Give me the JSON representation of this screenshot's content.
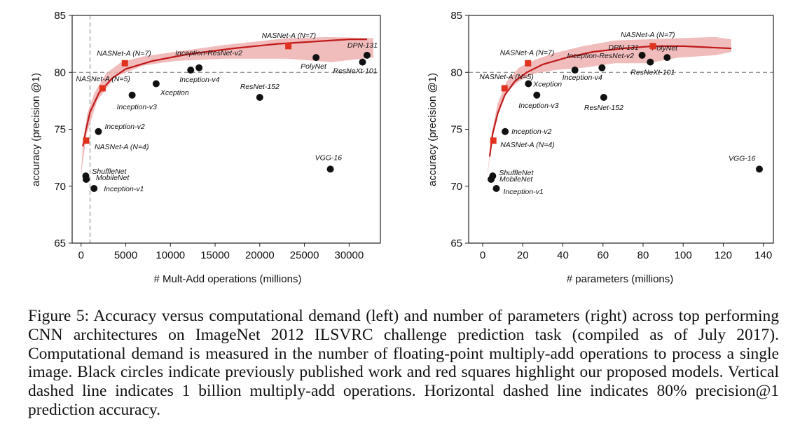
{
  "chart_data": [
    {
      "type": "scatter",
      "xlabel": "# Mult-Add operations (millions)",
      "ylabel": "accuracy (precision @1)",
      "xlim": [
        -1000,
        33500
      ],
      "ylim": [
        65,
        85
      ],
      "xticks": [
        0,
        5000,
        10000,
        15000,
        20000,
        25000,
        30000
      ],
      "yticks": [
        65,
        70,
        75,
        80,
        85
      ],
      "vline": 1000,
      "hline": 80,
      "published": [
        {
          "name": "ShuffleNet",
          "x": 524,
          "y": 70.9
        },
        {
          "name": "MobileNet",
          "x": 569,
          "y": 70.6
        },
        {
          "name": "Inception-v1",
          "x": 1448,
          "y": 69.8
        },
        {
          "name": "Inception-v2",
          "x": 1938,
          "y": 74.8
        },
        {
          "name": "Inception-v3",
          "x": 5713,
          "y": 78.0
        },
        {
          "name": "Xception",
          "x": 8400,
          "y": 79.0
        },
        {
          "name": "Inception-v4",
          "x": 12270,
          "y": 80.2
        },
        {
          "name": "Inception-ResNet-v2",
          "x": 13200,
          "y": 80.4
        },
        {
          "name": "ResNet-152",
          "x": 20000,
          "y": 77.8
        },
        {
          "name": "PolyNet",
          "x": 26300,
          "y": 81.3
        },
        {
          "name": "ResNeXt-101",
          "x": 31500,
          "y": 80.9
        },
        {
          "name": "DPN-131",
          "x": 32000,
          "y": 81.5
        },
        {
          "name": "VGG-16",
          "x": 27900,
          "y": 71.5
        }
      ],
      "proposed": [
        {
          "name": "NASNet-A (N=4)",
          "x": 564,
          "y": 74.0
        },
        {
          "name": "NASNet-A (N=5)",
          "x": 2400,
          "y": 78.6
        },
        {
          "name": "NASNet-A (N=7)",
          "x": 4900,
          "y": 80.8
        },
        {
          "name": "NASNet-A (N=7)",
          "x": 23200,
          "y": 82.3
        }
      ]
    },
    {
      "type": "scatter",
      "xlabel": "# parameters (millions)",
      "ylabel": "accuracy (precision @1)",
      "xlim": [
        -7,
        145
      ],
      "ylim": [
        65,
        85
      ],
      "xticks": [
        0,
        20,
        40,
        60,
        80,
        100,
        120,
        140
      ],
      "yticks": [
        65,
        70,
        75,
        80,
        85
      ],
      "hline": 80,
      "published": [
        {
          "name": "ShuffleNet",
          "x": 5,
          "y": 70.9
        },
        {
          "name": "MobileNet",
          "x": 4.2,
          "y": 70.6
        },
        {
          "name": "Inception-v1",
          "x": 6.8,
          "y": 69.8
        },
        {
          "name": "Inception-v2",
          "x": 11.2,
          "y": 74.8
        },
        {
          "name": "Inception-v3",
          "x": 27,
          "y": 78.0
        },
        {
          "name": "Xception",
          "x": 22.8,
          "y": 79.0
        },
        {
          "name": "Inception-v4",
          "x": 46,
          "y": 80.2
        },
        {
          "name": "Inception-ResNet-v2",
          "x": 59.5,
          "y": 80.4
        },
        {
          "name": "ResNet-152",
          "x": 60.4,
          "y": 77.8
        },
        {
          "name": "DPN-131",
          "x": 79.5,
          "y": 81.5
        },
        {
          "name": "ResNeXt-101",
          "x": 83.6,
          "y": 80.9
        },
        {
          "name": "PolyNet",
          "x": 92,
          "y": 81.3
        },
        {
          "name": "VGG-16",
          "x": 138,
          "y": 71.5
        }
      ],
      "proposed": [
        {
          "name": "NASNet-A (N=4)",
          "x": 5.3,
          "y": 74.0
        },
        {
          "name": "NASNet-A (N=5)",
          "x": 10.9,
          "y": 78.6
        },
        {
          "name": "NASNet-A (N=7)",
          "x": 22.6,
          "y": 80.8
        },
        {
          "name": "NASNet-A (N=7)",
          "x": 84.9,
          "y": 82.3
        }
      ]
    }
  ],
  "caption": "Figure 5: Accuracy versus computational demand (left) and number of parameters (right) across top performing CNN architectures on ImageNet 2012 ILSVRC challenge prediction task (compiled as of July 2017). Computational demand is measured in the number of floating-point multiply-add operations to process a single image. Black circles indicate previously published work and red squares highlight our proposed models. Vertical dashed line indicates 1 billion multiply-add operations. Horizontal dashed line indicates 80% precision@1 prediction accuracy.",
  "colors": {
    "proposed": "#e0321f",
    "published": "#111111",
    "trend": "#c01a1a",
    "band": "#eeb0b0"
  }
}
